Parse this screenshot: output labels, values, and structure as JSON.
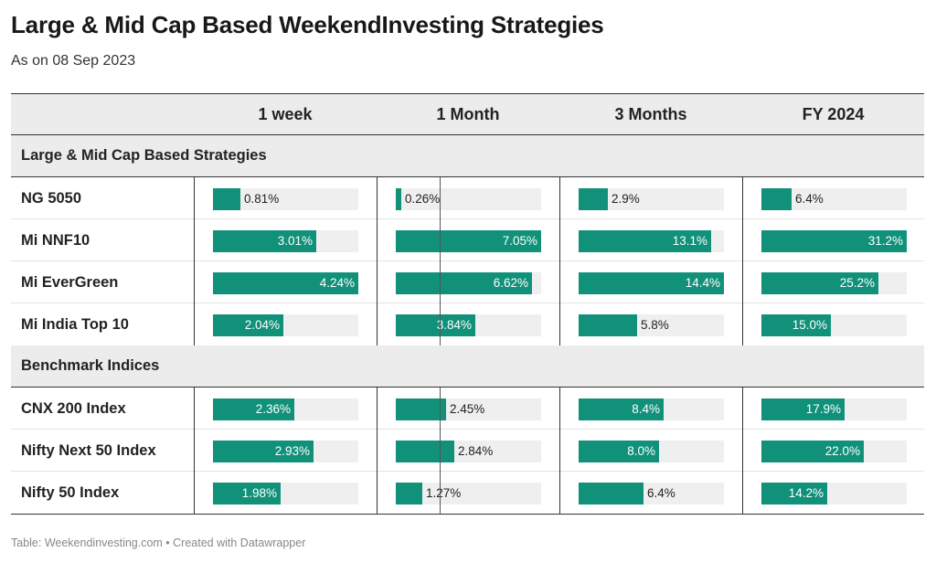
{
  "title": "Large & Mid Cap Based WeekendInvesting Strategies",
  "subtitle": "As on 08 Sep 2023",
  "footer": "Table: Weekendinvesting.com • Created with Datawrapper",
  "colors": {
    "bar": "#11917a",
    "track": "#efefef",
    "header_bg": "#ececec"
  },
  "chart_data": {
    "type": "table",
    "columns": [
      "1 week",
      "1 Month",
      "3 Months",
      "FY 2024"
    ],
    "column_max": [
      4.24,
      7.05,
      14.4,
      31.2
    ],
    "groups": [
      {
        "name": "Large & Mid Cap Based Strategies",
        "rows": [
          {
            "name": "NG 5050",
            "values": [
              0.81,
              0.26,
              2.9,
              6.4
            ],
            "labels": [
              "0.81%",
              "0.26%",
              "2.9%",
              "6.4%"
            ]
          },
          {
            "name": "Mi NNF10",
            "values": [
              3.01,
              7.05,
              13.1,
              31.2
            ],
            "labels": [
              "3.01%",
              "7.05%",
              "13.1%",
              "31.2%"
            ]
          },
          {
            "name": "Mi EverGreen",
            "values": [
              4.24,
              6.62,
              14.4,
              25.2
            ],
            "labels": [
              "4.24%",
              "6.62%",
              "14.4%",
              "25.2%"
            ]
          },
          {
            "name": "Mi India Top 10",
            "values": [
              2.04,
              3.84,
              5.8,
              15.0
            ],
            "labels": [
              "2.04%",
              "3.84%",
              "5.8%",
              "15.0%"
            ]
          }
        ]
      },
      {
        "name": "Benchmark Indices",
        "rows": [
          {
            "name": "CNX 200 Index",
            "values": [
              2.36,
              2.45,
              8.4,
              17.9
            ],
            "labels": [
              "2.36%",
              "2.45%",
              "8.4%",
              "17.9%"
            ]
          },
          {
            "name": "Nifty Next 50 Index",
            "values": [
              2.93,
              2.84,
              8.0,
              22.0
            ],
            "labels": [
              "2.93%",
              "2.84%",
              "8.0%",
              "22.0%"
            ]
          },
          {
            "name": "Nifty 50 Index",
            "values": [
              1.98,
              1.27,
              6.4,
              14.2
            ],
            "labels": [
              "1.98%",
              "1.27%",
              "6.4%",
              "14.2%"
            ]
          }
        ]
      }
    ]
  }
}
